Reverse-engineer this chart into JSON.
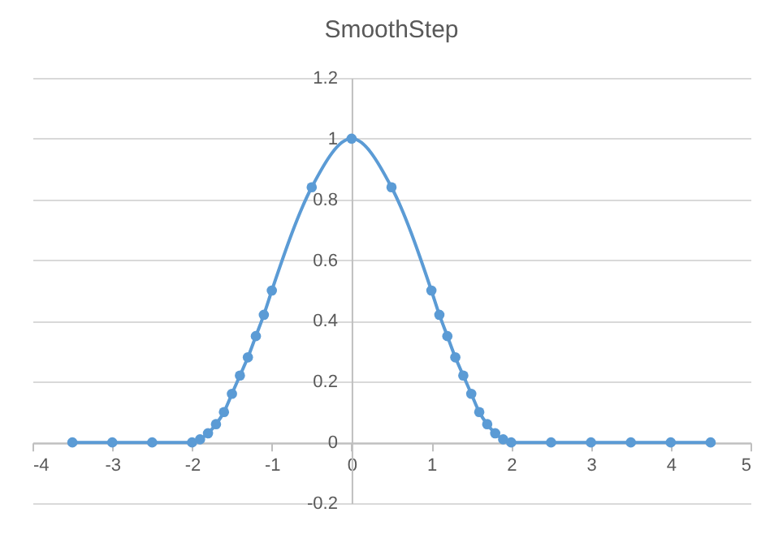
{
  "chart_data": {
    "type": "line",
    "title": "SmoothStep",
    "x": [
      -3.5,
      -3,
      -2.5,
      -2,
      -1.9,
      -1.8,
      -1.7,
      -1.6,
      -1.5,
      -1.4,
      -1.3,
      -1.2,
      -1.1,
      -1,
      -0.5,
      0,
      0.5,
      1,
      1.1,
      1.2,
      1.3,
      1.4,
      1.5,
      1.6,
      1.7,
      1.8,
      1.9,
      2,
      2.5,
      3,
      3.5,
      4,
      4.5
    ],
    "series": [
      {
        "color": "#5b9bd5",
        "values": [
          0,
          0,
          0,
          0,
          0.01,
          0.03,
          0.06,
          0.1,
          0.16,
          0.22,
          0.28,
          0.35,
          0.42,
          0.5,
          0.84,
          1,
          0.84,
          0.5,
          0.42,
          0.35,
          0.28,
          0.22,
          0.16,
          0.1,
          0.06,
          0.03,
          0.01,
          0,
          0,
          0,
          0,
          0,
          0
        ]
      }
    ],
    "xlim": [
      -4,
      5
    ],
    "xticks": [
      -4,
      -3,
      -2,
      -1,
      0,
      1,
      2,
      3,
      4,
      5
    ],
    "ylim": [
      -0.2,
      1.2
    ],
    "yticks": [
      -0.2,
      0,
      0.2,
      0.4,
      0.6,
      0.8,
      1,
      1.2
    ],
    "grid": "y",
    "marker": "circle",
    "line_style": "solid",
    "legend": false
  }
}
